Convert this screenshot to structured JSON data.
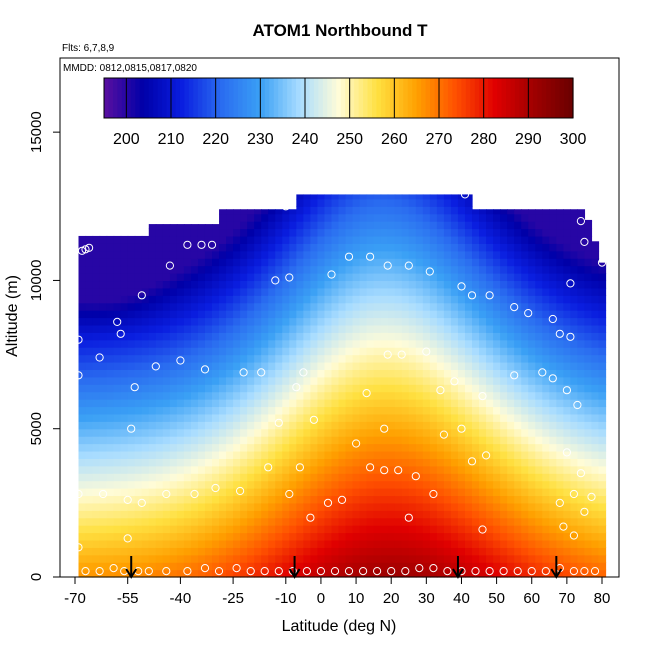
{
  "chart_data": {
    "type": "heatmap",
    "title": "ATOM1 Northbound T",
    "note_flights": "Flts: 6,7,8,9",
    "note_dates": "MMDD: 0812,0815,0817,0820",
    "xlabel": "Latitude (deg N)",
    "ylabel": "Altitude (m)",
    "xlim": [
      -70,
      80
    ],
    "ylim": [
      0,
      17500
    ],
    "x_ticks": [
      -70,
      -55,
      -40,
      -25,
      -10,
      0,
      10,
      20,
      30,
      40,
      50,
      60,
      70,
      80
    ],
    "y_ticks": [
      0,
      5000,
      10000,
      15000
    ],
    "colorbar": {
      "min": 195,
      "max": 300,
      "ticks": [
        200,
        210,
        220,
        230,
        240,
        250,
        260,
        270,
        280,
        290,
        300
      ],
      "colors": [
        "#5a0fa0",
        "#0000a8",
        "#0a1ee0",
        "#2a6cf0",
        "#3aa0f5",
        "#a8dcff",
        "#fffcd8",
        "#ffe040",
        "#ffa000",
        "#ff5000",
        "#e00000",
        "#a00000",
        "#6a0000"
      ]
    },
    "grid": false,
    "data_extent": {
      "lat_min": -69,
      "lat_max": 80,
      "top_profile": [
        [
          -69,
          11500
        ],
        [
          -50,
          11500
        ],
        [
          -48,
          11900
        ],
        [
          -30,
          11900
        ],
        [
          -28,
          12400
        ],
        [
          -8,
          12400
        ],
        [
          -6,
          12900
        ],
        [
          42,
          12900
        ],
        [
          44,
          12400
        ],
        [
          75,
          12400
        ],
        [
          80,
          10600
        ]
      ]
    },
    "temperature_field": {
      "surface_peak_lat": 20,
      "surface_peak_T": 292,
      "surface_south_T": 266,
      "surface_north_T": 268,
      "upper_min_T": 212
    },
    "sample_points": [
      [
        -68,
        11000
      ],
      [
        -67,
        11050
      ],
      [
        -66,
        11100
      ],
      [
        -69,
        8000
      ],
      [
        -69,
        6800
      ],
      [
        -63,
        7400
      ],
      [
        -58,
        8600
      ],
      [
        -57,
        8200
      ],
      [
        -51,
        9500
      ],
      [
        -53,
        6400
      ],
      [
        -54,
        5000
      ],
      [
        -47,
        7100
      ],
      [
        -43,
        10500
      ],
      [
        -38,
        11200
      ],
      [
        -34,
        11200
      ],
      [
        -31,
        11200
      ],
      [
        -40,
        7300
      ],
      [
        -33,
        7000
      ],
      [
        -22,
        6900
      ],
      [
        -13,
        10000
      ],
      [
        -9,
        10100
      ],
      [
        -10,
        12500
      ],
      [
        -17,
        6900
      ],
      [
        -7,
        6400
      ],
      [
        -2,
        5300
      ],
      [
        -5,
        6900
      ],
      [
        -12,
        5200
      ],
      [
        -15,
        3700
      ],
      [
        -6,
        3700
      ],
      [
        -9,
        2800
      ],
      [
        -23,
        2900
      ],
      [
        -30,
        3000
      ],
      [
        -36,
        2800
      ],
      [
        -44,
        2800
      ],
      [
        -69,
        2800
      ],
      [
        -62,
        2800
      ],
      [
        -55,
        2600
      ],
      [
        -55,
        1300
      ],
      [
        -51,
        2500
      ],
      [
        -69,
        1000
      ],
      [
        -67,
        200
      ],
      [
        -63,
        200
      ],
      [
        -59,
        300
      ],
      [
        -56,
        200
      ],
      [
        -52,
        200
      ],
      [
        -49,
        200
      ],
      [
        -44,
        200
      ],
      [
        -38,
        200
      ],
      [
        -33,
        300
      ],
      [
        -29,
        200
      ],
      [
        -24,
        300
      ],
      [
        -20,
        200
      ],
      [
        -16,
        200
      ],
      [
        -12,
        200
      ],
      [
        -8,
        200
      ],
      [
        -4,
        200
      ],
      [
        0,
        200
      ],
      [
        4,
        200
      ],
      [
        8,
        200
      ],
      [
        12,
        200
      ],
      [
        16,
        200
      ],
      [
        20,
        200
      ],
      [
        24,
        200
      ],
      [
        28,
        300
      ],
      [
        32,
        300
      ],
      [
        36,
        200
      ],
      [
        40,
        200
      ],
      [
        44,
        200
      ],
      [
        48,
        200
      ],
      [
        52,
        200
      ],
      [
        56,
        200
      ],
      [
        60,
        200
      ],
      [
        64,
        200
      ],
      [
        68,
        300
      ],
      [
        72,
        200
      ],
      [
        75,
        200
      ],
      [
        78,
        200
      ],
      [
        -3,
        2000
      ],
      [
        2,
        2500
      ],
      [
        6,
        2600
      ],
      [
        14,
        3700
      ],
      [
        18,
        3600
      ],
      [
        22,
        3600
      ],
      [
        27,
        3400
      ],
      [
        32,
        2800
      ],
      [
        35,
        4800
      ],
      [
        40,
        5000
      ],
      [
        43,
        3900
      ],
      [
        47,
        4100
      ],
      [
        46,
        1600
      ],
      [
        25,
        2000
      ],
      [
        19,
        7500
      ],
      [
        23,
        7500
      ],
      [
        30,
        7600
      ],
      [
        34,
        6300
      ],
      [
        38,
        6600
      ],
      [
        46,
        6100
      ],
      [
        55,
        6800
      ],
      [
        63,
        6900
      ],
      [
        66,
        6700
      ],
      [
        70,
        6300
      ],
      [
        73,
        5800
      ],
      [
        70,
        4200
      ],
      [
        74,
        3500
      ],
      [
        72,
        2800
      ],
      [
        68,
        2500
      ],
      [
        75,
        2200
      ],
      [
        69,
        1700
      ],
      [
        72,
        1400
      ],
      [
        77,
        2700
      ],
      [
        80,
        10600
      ],
      [
        75,
        11300
      ],
      [
        74,
        12000
      ],
      [
        71,
        9900
      ],
      [
        66,
        8700
      ],
      [
        68,
        8200
      ],
      [
        71,
        8100
      ],
      [
        59,
        8900
      ],
      [
        55,
        9100
      ],
      [
        48,
        9500
      ],
      [
        43,
        9500
      ],
      [
        40,
        9800
      ],
      [
        31,
        10300
      ],
      [
        25,
        10500
      ],
      [
        19,
        10500
      ],
      [
        14,
        10800
      ],
      [
        8,
        10800
      ],
      [
        3,
        10200
      ],
      [
        41,
        12900
      ],
      [
        18,
        5000
      ],
      [
        10,
        4500
      ],
      [
        13,
        6200
      ]
    ],
    "arrows_lat": [
      -54,
      -7.5,
      39,
      67
    ]
  }
}
